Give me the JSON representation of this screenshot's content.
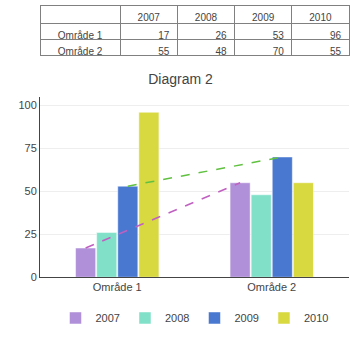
{
  "chart_data": {
    "type": "bar",
    "title": "Diagram 2",
    "categories": [
      "Område 1",
      "Område 2"
    ],
    "series": [
      {
        "name": "2007",
        "color": "#b090d8",
        "values": [
          17,
          55
        ]
      },
      {
        "name": "2008",
        "color": "#80e0c8",
        "values": [
          26,
          48
        ]
      },
      {
        "name": "2009",
        "color": "#4878d0",
        "values": [
          53,
          70
        ]
      },
      {
        "name": "2010",
        "color": "#d8d840",
        "values": [
          96,
          55
        ]
      },
      {
        "type": "line",
        "line_style": "dashed",
        "color": "#c060c0",
        "values": [
          17,
          55
        ]
      },
      {
        "type": "line",
        "line_style": "dashed",
        "color": "#60c040",
        "values": [
          53,
          70
        ]
      }
    ],
    "ylim": [
      0,
      105
    ],
    "yticks": [
      0,
      25,
      50,
      75,
      100
    ],
    "grid": true,
    "legend": "bottom"
  }
}
